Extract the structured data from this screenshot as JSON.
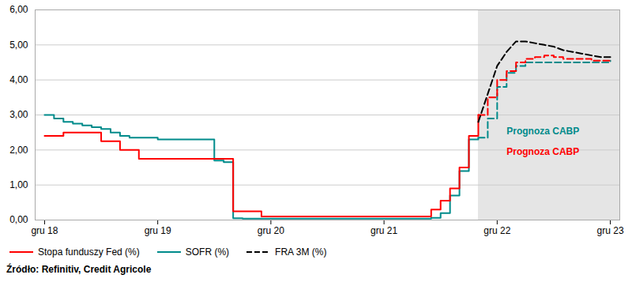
{
  "chart_data": {
    "type": "line",
    "caption": "Źródło: Refinitiv, Credit Agricole",
    "xlim": [
      -1,
      61
    ],
    "xticks": [
      {
        "value": 0,
        "label": "gru 18"
      },
      {
        "value": 12,
        "label": "gru 19"
      },
      {
        "value": 24,
        "label": "gru 20"
      },
      {
        "value": 36,
        "label": "gru 21"
      },
      {
        "value": 48,
        "label": "gru 22"
      },
      {
        "value": 60,
        "label": "gru 23"
      }
    ],
    "ylim": [
      0,
      6.0
    ],
    "yticks": [
      {
        "value": 0.0,
        "label": "0,00"
      },
      {
        "value": 1.0,
        "label": "1,00"
      },
      {
        "value": 2.0,
        "label": "2,00"
      },
      {
        "value": 3.0,
        "label": "3,00"
      },
      {
        "value": 4.0,
        "label": "4,00"
      },
      {
        "value": 5.0,
        "label": "5,00"
      },
      {
        "value": 6.0,
        "label": "6,00"
      }
    ],
    "grid": "y",
    "legend": "bottom",
    "forecast": {
      "x": 46,
      "color": "#e5e5e5"
    },
    "series": [
      {
        "name": "Stopa funduszy Fed (%)",
        "color": "#ff0000",
        "type": "step",
        "line_style": "solid",
        "x": [
          0,
          1,
          2,
          3,
          4,
          5,
          6,
          7,
          8,
          9,
          10,
          11,
          12,
          13,
          14,
          15,
          16,
          17,
          18,
          19,
          20,
          21,
          22,
          23,
          24,
          25,
          26,
          27,
          28,
          29,
          30,
          31,
          32,
          33,
          34,
          35,
          36,
          37,
          38,
          39,
          40,
          41,
          42,
          43,
          44,
          45,
          46,
          47,
          48,
          49,
          50,
          51,
          52,
          53,
          54,
          55,
          56,
          57,
          58,
          59,
          60
        ],
        "values": [
          2.4,
          2.4,
          2.5,
          2.5,
          2.5,
          2.5,
          2.25,
          2.25,
          2.0,
          2.0,
          1.75,
          1.75,
          1.75,
          1.75,
          1.75,
          1.75,
          1.75,
          1.75,
          1.75,
          1.75,
          0.25,
          0.25,
          0.25,
          0.1,
          0.1,
          0.1,
          0.1,
          0.1,
          0.1,
          0.1,
          0.1,
          0.1,
          0.1,
          0.1,
          0.1,
          0.1,
          0.1,
          0.1,
          0.1,
          0.1,
          0.1,
          0.3,
          0.55,
          0.9,
          1.5,
          2.4,
          3.0,
          3.5,
          4.0,
          4.25,
          4.5,
          4.6,
          4.65,
          4.7,
          4.65,
          4.6,
          4.6,
          4.6,
          4.55,
          4.55,
          4.5
        ]
      },
      {
        "name": "SOFR (%)",
        "color": "#008b8b",
        "type": "step",
        "line_style": "solid",
        "x": [
          0,
          1,
          2,
          3,
          4,
          5,
          6,
          7,
          8,
          9,
          10,
          11,
          12,
          13,
          14,
          15,
          16,
          17,
          18,
          19,
          20,
          21,
          22,
          23,
          24,
          25,
          26,
          27,
          28,
          29,
          30,
          31,
          32,
          33,
          34,
          35,
          36,
          37,
          38,
          39,
          40,
          41,
          42,
          43,
          44,
          45,
          46,
          47,
          48,
          49,
          50,
          51,
          52,
          53,
          54,
          55,
          56,
          57,
          58,
          59,
          60
        ],
        "values": [
          3.0,
          2.9,
          2.8,
          2.75,
          2.7,
          2.65,
          2.6,
          2.5,
          2.4,
          2.35,
          2.35,
          2.35,
          2.3,
          2.3,
          2.3,
          2.3,
          2.3,
          2.3,
          1.7,
          1.65,
          0.05,
          0.04,
          0.04,
          0.04,
          0.04,
          0.04,
          0.04,
          0.04,
          0.04,
          0.04,
          0.04,
          0.04,
          0.04,
          0.04,
          0.04,
          0.04,
          0.04,
          0.04,
          0.04,
          0.04,
          0.04,
          0.06,
          0.2,
          0.7,
          1.4,
          2.3,
          2.35,
          2.9,
          3.8,
          4.2,
          4.4,
          4.5,
          4.5,
          4.5,
          4.5,
          4.5,
          4.5,
          4.5,
          4.5,
          4.5,
          4.55
        ]
      },
      {
        "name": "FRA 3M (%)",
        "color": "#000000",
        "type": "line",
        "line_style": "dashed",
        "x": [
          46,
          47,
          48,
          49,
          50,
          51,
          52,
          53,
          54,
          55,
          56,
          57,
          58,
          59,
          60
        ],
        "values": [
          2.8,
          3.6,
          4.4,
          4.8,
          5.1,
          5.1,
          5.05,
          5.0,
          4.95,
          4.85,
          4.8,
          4.75,
          4.7,
          4.65,
          4.65
        ]
      }
    ],
    "annotations": [
      {
        "text": "Prognoza CABP",
        "x": 49,
        "y": 2.45,
        "color": "#008b8b"
      },
      {
        "text": "Prognoza CABP",
        "x": 49,
        "y": 1.85,
        "color": "#ff0000"
      }
    ]
  }
}
